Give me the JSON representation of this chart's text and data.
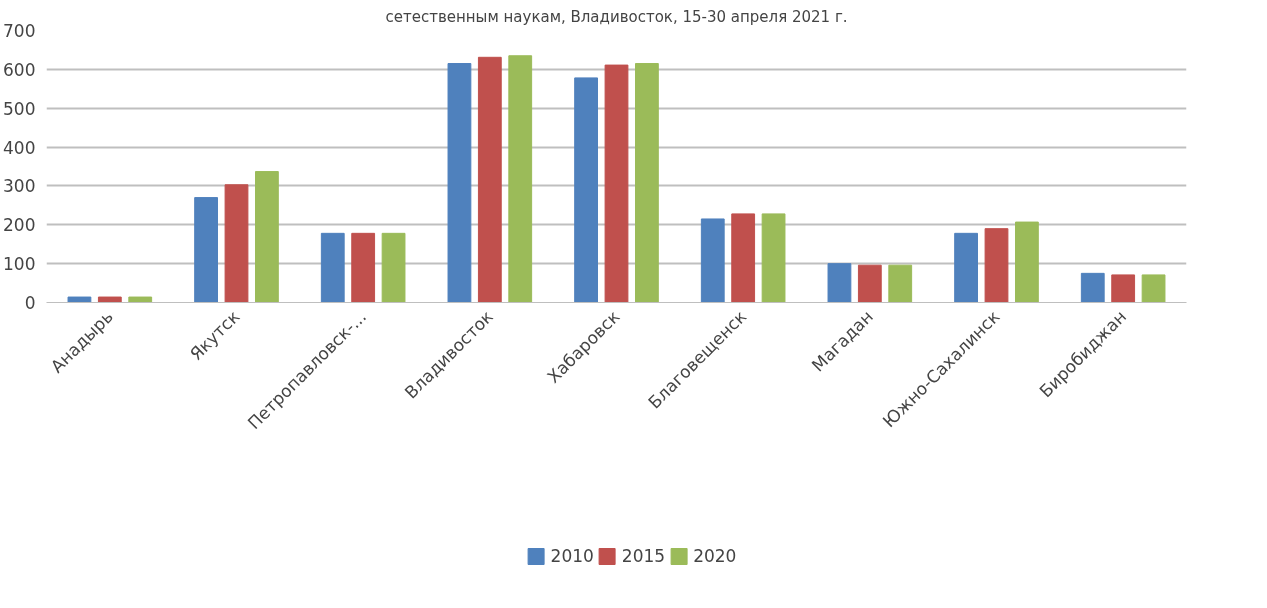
{
  "chart_data": {
    "type": "bar",
    "annotations": [
      "сетественным наукам, Владивосток, 15-30 апреля 2021 г."
    ],
    "categories": [
      "Анадырь",
      "Якутск",
      "Петропавловск-...",
      "Владивосток",
      "Хабаровск",
      "Благовещенск",
      "Магадан",
      "Южно-Сахалинск",
      "Биробиджан"
    ],
    "series": [
      {
        "name": "2010",
        "color": "#4f81bd",
        "values": [
          14,
          270,
          178,
          615,
          578,
          215,
          100,
          178,
          75
        ]
      },
      {
        "name": "2015",
        "color": "#c0504d",
        "values": [
          14,
          303,
          178,
          631,
          611,
          228,
          96,
          190,
          71
        ]
      },
      {
        "name": "2020",
        "color": "#9bbb59",
        "values": [
          14,
          337,
          178,
          635,
          615,
          228,
          96,
          207,
          71
        ]
      }
    ],
    "ylim": [
      0,
      700
    ],
    "yticks": [
      0,
      100,
      200,
      300,
      400,
      500,
      600,
      700
    ],
    "grid": "y",
    "legend": "bottom"
  }
}
